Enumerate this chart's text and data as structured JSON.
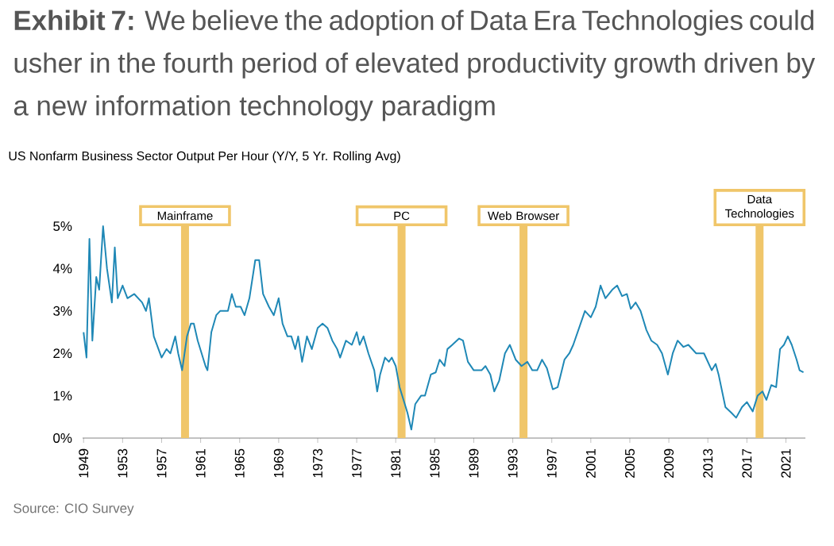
{
  "chart_data": {
    "type": "line",
    "title": "**Exhibit 7:** We believe the adoption of Data Era Technologies could usher in the fourth period of elevated productivity growth driven by a new information technology paradigm",
    "subtitle": "US Nonfarm Business Sector Output Per Hour (Y/Y, 5 Yr. Rolling Avg)",
    "annotations": [
      "Source: CIO Survey"
    ],
    "x": [
      1949.0,
      1949.3,
      1949.6,
      1949.9,
      1950.3,
      1950.6,
      1951.0,
      1951.4,
      1951.9,
      1952.2,
      1952.5,
      1953.0,
      1953.5,
      1954.2,
      1955.0,
      1955.4,
      1955.7,
      1956.2,
      1957.0,
      1957.5,
      1957.9,
      1958.4,
      1958.7,
      1959.1,
      1959.6,
      1960.0,
      1960.3,
      1960.7,
      1961.1,
      1961.5,
      1961.7,
      1962.1,
      1962.6,
      1963.0,
      1963.8,
      1964.2,
      1964.6,
      1965.1,
      1965.5,
      1966.0,
      1966.6,
      1967.0,
      1967.4,
      1968.0,
      1968.5,
      1969.0,
      1969.4,
      1969.9,
      1970.3,
      1970.7,
      1971.0,
      1971.4,
      1971.9,
      1972.4,
      1973.0,
      1973.5,
      1974.0,
      1974.5,
      1975.0,
      1975.3,
      1975.9,
      1976.5,
      1977.0,
      1977.3,
      1977.7,
      1978.2,
      1978.8,
      1979.1,
      1979.4,
      1979.9,
      1980.3,
      1980.6,
      1981.0,
      1981.4,
      1981.8,
      1982.2,
      1982.6,
      1983.0,
      1983.6,
      1984.0,
      1984.6,
      1985.1,
      1985.5,
      1986.0,
      1986.3,
      1986.8,
      1987.5,
      1987.9,
      1988.4,
      1989.0,
      1989.8,
      1990.2,
      1990.7,
      1991.1,
      1991.6,
      1992.2,
      1992.7,
      1993.3,
      1993.9,
      1994.5,
      1995.0,
      1995.5,
      1996.0,
      1996.5,
      1997.1,
      1997.6,
      1998.3,
      1998.8,
      1999.2,
      1999.8,
      2000.4,
      2001.0,
      2001.5,
      2002.0,
      2002.5,
      2003.2,
      2003.7,
      2004.2,
      2004.7,
      2005.1,
      2005.6,
      2006.1,
      2006.7,
      2007.2,
      2007.8,
      2008.3,
      2008.9,
      2009.4,
      2009.9,
      2010.5,
      2011.0,
      2011.8,
      2012.6,
      2012.9,
      2013.4,
      2013.8,
      2014.1,
      2014.8,
      2015.4,
      2015.9,
      2016.5,
      2017.0,
      2017.6,
      2018.1,
      2018.6,
      2019.0,
      2019.5,
      2020.0,
      2020.4,
      2020.8,
      2021.2,
      2021.6,
      2022.1,
      2022.4,
      2022.8
    ],
    "series": [
      {
        "color": "#1f88b6",
        "values": [
          2.5,
          1.9,
          4.7,
          2.3,
          3.8,
          3.5,
          5.0,
          4.0,
          3.2,
          4.5,
          3.3,
          3.6,
          3.3,
          3.4,
          3.2,
          3.0,
          3.3,
          2.4,
          1.9,
          2.1,
          2.0,
          2.4,
          2.0,
          1.6,
          2.4,
          2.7,
          2.7,
          2.3,
          2.0,
          1.7,
          1.6,
          2.5,
          2.9,
          3.0,
          3.0,
          3.4,
          3.1,
          3.1,
          2.9,
          3.3,
          4.2,
          4.2,
          3.4,
          3.1,
          2.9,
          3.3,
          2.7,
          2.4,
          2.4,
          2.1,
          2.4,
          1.8,
          2.4,
          2.1,
          2.6,
          2.7,
          2.6,
          2.3,
          2.1,
          1.9,
          2.3,
          2.2,
          2.5,
          2.2,
          2.4,
          2.0,
          1.6,
          1.1,
          1.5,
          1.9,
          1.8,
          1.9,
          1.7,
          1.2,
          0.9,
          0.6,
          0.2,
          0.8,
          1.0,
          1.0,
          1.5,
          1.55,
          1.85,
          1.7,
          2.1,
          2.2,
          2.35,
          2.3,
          1.8,
          1.6,
          1.6,
          1.7,
          1.5,
          1.1,
          1.35,
          2.0,
          2.2,
          1.85,
          1.7,
          1.8,
          1.6,
          1.6,
          1.85,
          1.65,
          1.15,
          1.2,
          1.85,
          2.0,
          2.2,
          2.6,
          3.0,
          2.85,
          3.1,
          3.6,
          3.3,
          3.5,
          3.6,
          3.35,
          3.4,
          3.05,
          3.2,
          3.0,
          2.55,
          2.3,
          2.2,
          2.0,
          1.5,
          2.0,
          2.3,
          2.15,
          2.2,
          2.0,
          2.0,
          1.85,
          1.6,
          1.75,
          1.5,
          0.73,
          0.6,
          0.48,
          0.73,
          0.85,
          0.63,
          1.0,
          1.1,
          0.9,
          1.25,
          1.2,
          2.1,
          2.2,
          2.4,
          2.2,
          1.85,
          1.6,
          1.55
        ]
      }
    ],
    "line_style": "solid",
    "xlim": [
      1948.9,
      2023.0
    ],
    "ylim": [
      0,
      5
    ],
    "xticks": [
      1949,
      1953,
      1957,
      1961,
      1965,
      1969,
      1973,
      1977,
      1981,
      1985,
      1989,
      1993,
      1997,
      2001,
      2005,
      2009,
      2013,
      2017,
      2021
    ],
    "yticks": [
      {
        "value": 0,
        "label": "0%"
      },
      {
        "value": 1,
        "label": "1%"
      },
      {
        "value": 2,
        "label": "2%"
      },
      {
        "value": 3,
        "label": "3%"
      },
      {
        "value": 4,
        "label": "4%"
      },
      {
        "value": 5,
        "label": "5%"
      }
    ],
    "ref_lines": [
      {
        "axis": "x",
        "value": 1959.4,
        "label": "Mainframe",
        "color": "#f0c66a"
      },
      {
        "axis": "x",
        "value": 1981.6,
        "label": "PC",
        "color": "#f0c66a"
      },
      {
        "axis": "x",
        "value": 1994.1,
        "label": "Web Browser",
        "color": "#f0c66a"
      },
      {
        "axis": "x",
        "value": 2018.3,
        "label": "Data Technologies",
        "color": "#f0c66a"
      }
    ]
  }
}
